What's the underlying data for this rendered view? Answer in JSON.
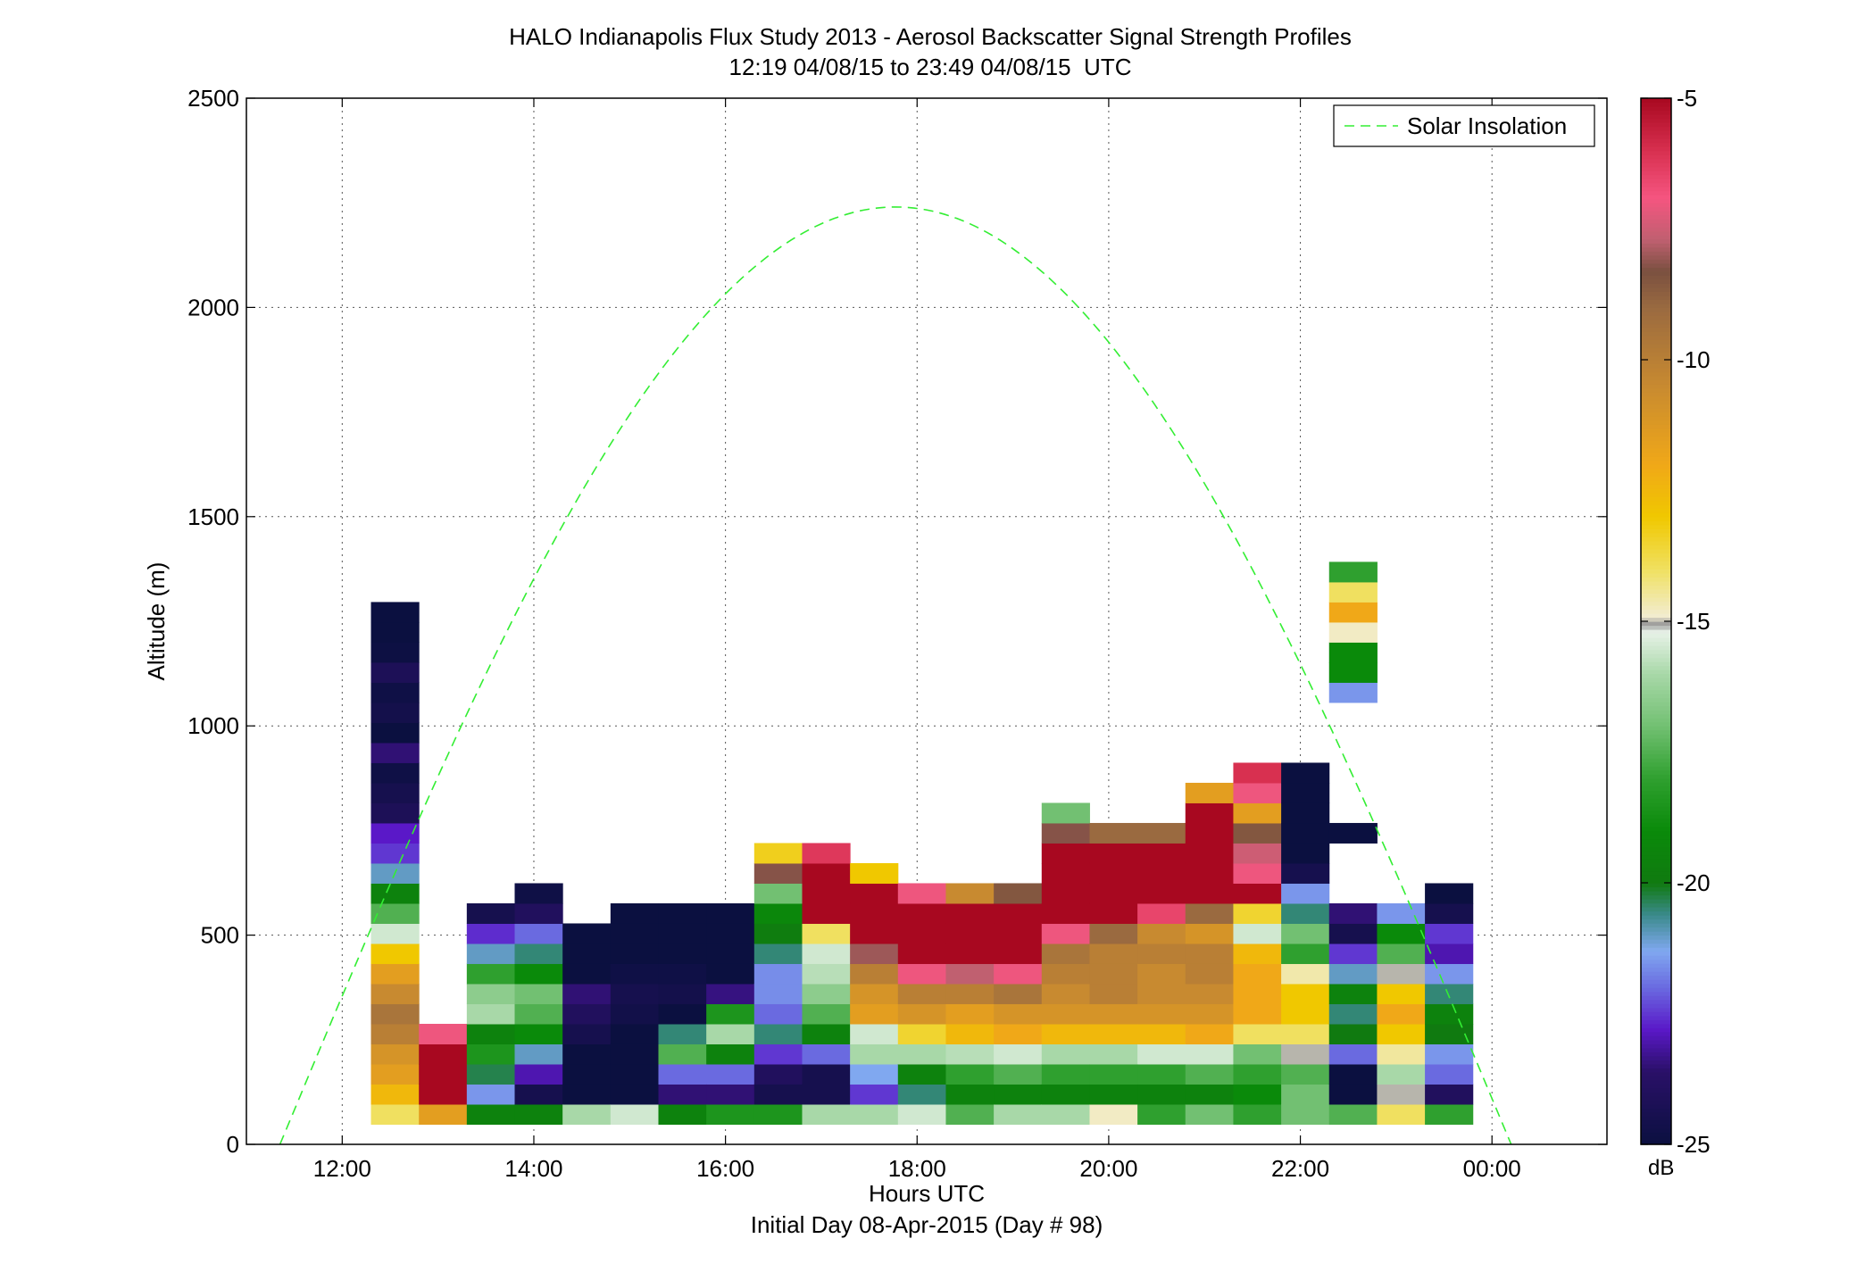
{
  "chart_data": {
    "type": "heatmap",
    "title": "HALO Indianapolis Flux Study 2013 - Aerosol Backscatter Signal Strength Profiles",
    "subtitle": "12:19 04/08/15 to 23:49 04/08/15  UTC",
    "xlabel": "Hours UTC",
    "xlabel2": "Initial Day 08-Apr-2015 (Day # 98)",
    "ylabel": "Altitude (m)",
    "xlim_hours": [
      11.0,
      25.2
    ],
    "ylim": [
      0,
      2500
    ],
    "x_ticks": [
      {
        "value": 12,
        "label": "12:00"
      },
      {
        "value": 14,
        "label": "14:00"
      },
      {
        "value": 16,
        "label": "16:00"
      },
      {
        "value": 18,
        "label": "18:00"
      },
      {
        "value": 20,
        "label": "20:00"
      },
      {
        "value": 22,
        "label": "22:00"
      },
      {
        "value": 24,
        "label": "00:00"
      }
    ],
    "y_ticks": [
      {
        "value": 0,
        "label": "0"
      },
      {
        "value": 500,
        "label": "500"
      },
      {
        "value": 1000,
        "label": "1000"
      },
      {
        "value": 1500,
        "label": "1500"
      },
      {
        "value": 2000,
        "label": "2000"
      },
      {
        "value": 2500,
        "label": "2500"
      }
    ],
    "grid": true,
    "legend": {
      "position": "top-right",
      "entries": [
        {
          "name": "Solar Insolation",
          "style": "dashed",
          "color": "#33ee33"
        }
      ]
    },
    "colorbar": {
      "label": "dB",
      "range": [
        -25,
        -5
      ],
      "ticks": [
        {
          "value": -5,
          "label": "-5"
        },
        {
          "value": -10,
          "label": "-10"
        },
        {
          "value": -15,
          "label": "-15"
        },
        {
          "value": -20,
          "label": "-20"
        },
        {
          "value": -25,
          "label": "-25"
        }
      ],
      "stops": [
        {
          "v": -25,
          "c": "#0b1040"
        },
        {
          "v": -23.6,
          "c": "#2a1068"
        },
        {
          "v": -22.8,
          "c": "#5a18c8"
        },
        {
          "v": -22.0,
          "c": "#6a6ae0"
        },
        {
          "v": -21.3,
          "c": "#80a8f0"
        },
        {
          "v": -20.6,
          "c": "#3a8a8a"
        },
        {
          "v": -20.0,
          "c": "#107a10"
        },
        {
          "v": -19.0,
          "c": "#0a8a0a"
        },
        {
          "v": -18.0,
          "c": "#2fa02f"
        },
        {
          "v": -17.0,
          "c": "#72c072"
        },
        {
          "v": -16.0,
          "c": "#a8d8a8"
        },
        {
          "v": -15.2,
          "c": "#e8f2e8"
        },
        {
          "v": -15.05,
          "c": "#9a9a9a"
        },
        {
          "v": -14.9,
          "c": "#f2ecd0"
        },
        {
          "v": -14.0,
          "c": "#f0e060"
        },
        {
          "v": -13.0,
          "c": "#f0c800"
        },
        {
          "v": -12.0,
          "c": "#f0a818"
        },
        {
          "v": -10.5,
          "c": "#c88a30"
        },
        {
          "v": -9.0,
          "c": "#9a6a40"
        },
        {
          "v": -8.3,
          "c": "#7a5040"
        },
        {
          "v": -7.7,
          "c": "#c06070"
        },
        {
          "v": -6.9,
          "c": "#f55580"
        },
        {
          "v": -6.0,
          "c": "#d83050"
        },
        {
          "v": -5.0,
          "c": "#a80820"
        }
      ]
    },
    "cell_height_m": 48,
    "base_altitude_m": 48,
    "columns": [
      {
        "x0": 12.3,
        "x1": 12.8,
        "dB": [
          -14,
          -12.5,
          -11.5,
          -11,
          -10,
          -9.5,
          -10.5,
          -11.5,
          -13,
          -15.5,
          -17.5,
          -19.5,
          -21,
          -22.5,
          -22.8,
          -24.2,
          -24.5,
          -24.8,
          -23.5,
          -25,
          -24.6,
          -24.8,
          -24.2,
          -24.9,
          -25,
          -25
        ]
      },
      {
        "x0": 12.8,
        "x1": 13.3,
        "dB": [
          -11.5,
          -5,
          -5,
          -5,
          -7
        ]
      },
      {
        "x0": 13.3,
        "x1": 13.8,
        "dB": [
          -19.5,
          -21.5,
          -20.3,
          -18.5,
          -19.5,
          -16,
          -16.5,
          -18,
          -21,
          -22.6,
          -24.5
        ]
      },
      {
        "x0": 13.8,
        "x1": 14.3,
        "dB": [
          -19.5,
          -24.5,
          -23,
          -21,
          -19,
          -17.5,
          -17,
          -19,
          -20.5,
          -22,
          -24,
          -24.8
        ]
      },
      {
        "x0": 14.3,
        "x1": 14.8,
        "dB": [
          -16,
          -25,
          -25,
          -25,
          -24.5,
          -24,
          -23.5,
          -25,
          -25,
          -25
        ]
      },
      {
        "x0": 14.8,
        "x1": 15.3,
        "dB": [
          -15.5,
          -25,
          -25,
          -25,
          -25,
          -24.7,
          -24.5,
          -24.8,
          -25,
          -25,
          -25
        ]
      },
      {
        "x0": 15.3,
        "x1": 15.8,
        "dB": [
          -19.5,
          -23.5,
          -22,
          -17.5,
          -20.5,
          -25,
          -24.6,
          -24.8,
          -25,
          -25,
          -25
        ]
      },
      {
        "x0": 15.8,
        "x1": 16.3,
        "dB": [
          -18.5,
          -23.5,
          -22,
          -19.5,
          -16,
          -18.5,
          -23.4,
          -25,
          -25,
          -25,
          -25
        ]
      },
      {
        "x0": 16.3,
        "x1": 16.8,
        "dB": [
          -18.5,
          -24.5,
          -24,
          -22.5,
          -20.5,
          -22,
          -21.6,
          -21.6,
          -20.5,
          -19.8,
          -19.2,
          -17,
          -8.2,
          -13.3
        ]
      },
      {
        "x0": 16.8,
        "x1": 17.3,
        "dB": [
          -16,
          -24.5,
          -24.5,
          -22,
          -19.5,
          -17.5,
          -16.5,
          -15.8,
          -15.5,
          -14,
          -5,
          -5,
          -5,
          -6.2
        ]
      },
      {
        "x0": 17.3,
        "x1": 17.8,
        "dB": [
          -16,
          -22.5,
          -21.3,
          -16,
          -15.5,
          -11.5,
          -11,
          -10,
          -8,
          -5,
          -5,
          -5,
          -13
        ]
      },
      {
        "x0": 17.8,
        "x1": 18.3,
        "dB": [
          -15.5,
          -20.5,
          -19.5,
          -16,
          -13.5,
          -11,
          -10,
          -7,
          -5,
          -5,
          -5,
          -7
        ]
      },
      {
        "x0": 18.3,
        "x1": 18.8,
        "dB": [
          -17.5,
          -19.5,
          -18,
          -15.8,
          -12.5,
          -11.5,
          -10,
          -7.7,
          -5,
          -5,
          -5,
          -10.5
        ]
      },
      {
        "x0": 18.8,
        "x1": 19.3,
        "dB": [
          -16,
          -19.5,
          -17.5,
          -15.5,
          -12,
          -11,
          -9.5,
          -7,
          -5,
          -5,
          -5,
          -8.5
        ]
      },
      {
        "x0": 19.3,
        "x1": 19.8,
        "dB": [
          -16,
          -19.5,
          -18,
          -16,
          -12.5,
          -11,
          -10.5,
          -10,
          -9.5,
          -7,
          -5,
          -5,
          -5,
          -5,
          -8.2,
          -17
        ]
      },
      {
        "x0": 19.8,
        "x1": 20.3,
        "dB": [
          -14.8,
          -19.5,
          -18,
          -16,
          -12.5,
          -11,
          -10,
          -10,
          -10,
          -9,
          -5,
          -5,
          -5,
          -5,
          -9
        ]
      },
      {
        "x0": 20.3,
        "x1": 20.8,
        "dB": [
          -18,
          -19.5,
          -18,
          -15.5,
          -12.5,
          -11,
          -10.5,
          -10.5,
          -10,
          -10.5,
          -6.5,
          -5,
          -5,
          -5,
          -9
        ]
      },
      {
        "x0": 20.8,
        "x1": 21.3,
        "dB": [
          -17,
          -19.5,
          -17.5,
          -15.5,
          -12,
          -11,
          -10.5,
          -10,
          -10,
          -11,
          -9,
          -5,
          -5,
          -5,
          -5,
          -5,
          -11.5
        ]
      },
      {
        "x0": 21.3,
        "x1": 21.8,
        "dB": [
          -18,
          -19,
          -18,
          -17,
          -14,
          -12,
          -12,
          -12,
          -12.5,
          -15.5,
          -13.5,
          -5,
          -7,
          -7.5,
          -8.5,
          -11.5,
          -7,
          -6
        ]
      },
      {
        "x0": 21.8,
        "x1": 22.3,
        "dB": [
          -17,
          -17,
          -17.5,
          -15,
          -14,
          -13,
          -13,
          -14.6,
          -18,
          -17,
          -20.5,
          -21.5,
          -24.5,
          -25,
          -25,
          -25,
          -25,
          -25
        ]
      },
      {
        "x0": 22.3,
        "x1": 22.8,
        "dB": [
          -17.5,
          -25,
          -25,
          -22,
          -20,
          -20.5,
          -19.5,
          -21,
          -22.5,
          -24.5,
          -23.5,
          null,
          null,
          null,
          null,
          null,
          null,
          null,
          null,
          null,
          null,
          -21.5,
          -19,
          -19,
          -14.8,
          -12,
          -14,
          -18
        ]
      },
      {
        "x0": 22.8,
        "x1": 23.3,
        "dB": [
          -14,
          -15,
          -16,
          -14.5,
          -13,
          -12,
          -13,
          -15,
          -17.5,
          -19,
          -21.5
        ]
      },
      {
        "x0": 23.3,
        "x1": 23.8,
        "dB": [
          -18,
          -24,
          -22,
          -21.5,
          -20,
          -19.5,
          -20.5,
          -21.5,
          -23,
          -22.5,
          -24.5,
          -25
        ]
      }
    ],
    "floating_cell": {
      "x0": 22.3,
      "x1": 22.8,
      "y0": 720,
      "y1": 768,
      "dB": -25
    },
    "solar_insolation": {
      "peak_altitude": 2240,
      "peak_hour": 17.8,
      "zero_hours": [
        11.35,
        24.2
      ]
    }
  }
}
